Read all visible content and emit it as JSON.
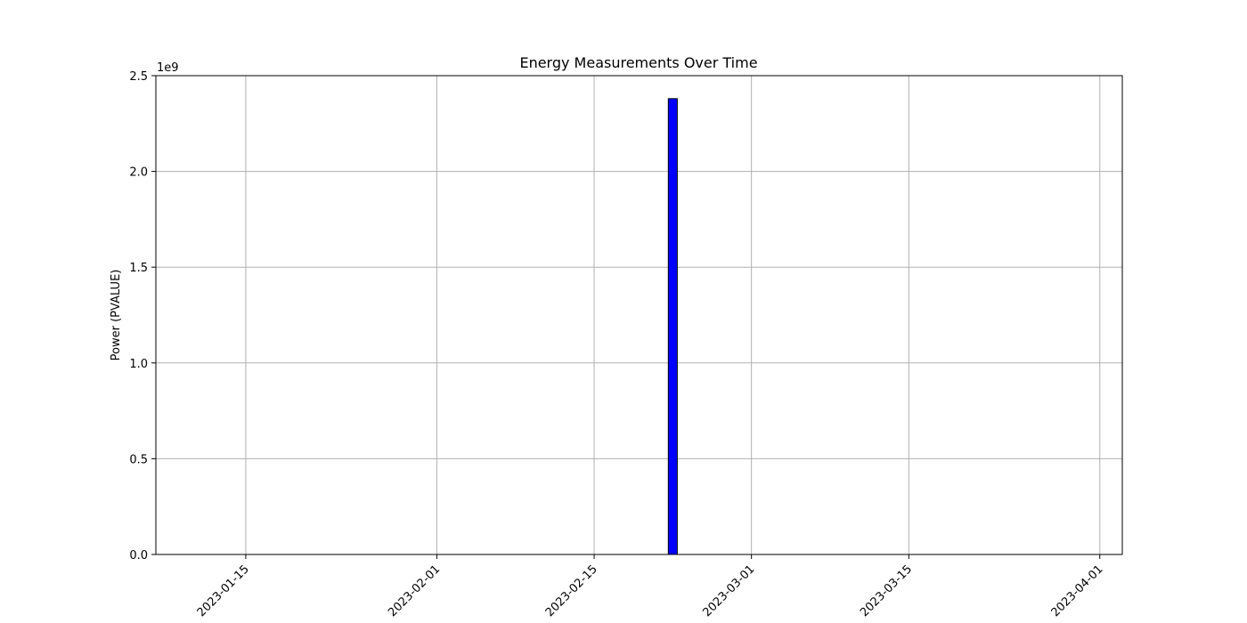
{
  "chart_data": {
    "type": "bar",
    "title": "Energy Measurements Over Time",
    "xlabel": "",
    "ylabel": "Power (PVALUE)",
    "y_offset_label": "1e9",
    "x_axis_type": "date",
    "xlim": [
      "2023-01-07",
      "2023-04-03"
    ],
    "ylim": [
      0,
      2500000000
    ],
    "x_ticks": [
      "2023-01-15",
      "2023-02-01",
      "2023-02-15",
      "2023-03-01",
      "2023-03-15",
      "2023-04-01"
    ],
    "y_ticks": [
      0,
      500000000,
      1000000000,
      1500000000,
      2000000000,
      2500000000
    ],
    "y_tick_labels": [
      "0.0",
      "0.5",
      "1.0",
      "1.5",
      "2.0",
      "2.5"
    ],
    "x_tick_rotation_deg": 45,
    "grid": true,
    "bar_color": "#0000ff",
    "bar_edge_color": "#000000",
    "points": [
      {
        "x": "2023-01-10",
        "y": 0
      },
      {
        "x": "2023-01-11",
        "y": 0
      },
      {
        "x": "2023-01-12",
        "y": 0
      },
      {
        "x": "2023-01-13",
        "y": 0
      },
      {
        "x": "2023-02-22",
        "y": 2380000000
      },
      {
        "x": "2023-02-23",
        "y": 0
      },
      {
        "x": "2023-02-24",
        "y": 0
      },
      {
        "x": "2023-03-30",
        "y": 0
      },
      {
        "x": "2023-03-31",
        "y": 0
      },
      {
        "x": "2023-04-01",
        "y": 0
      }
    ]
  }
}
